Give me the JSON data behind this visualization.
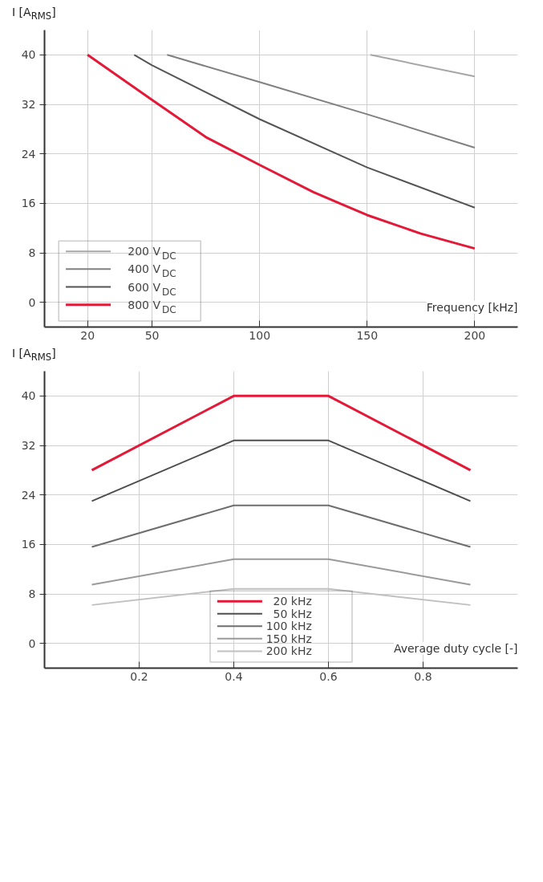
{
  "chart_data": [
    {
      "type": "line",
      "ylabel": "I [A$_{RMS}$]",
      "xlabel": "Frequency [kHz]",
      "xlim": [
        0,
        220
      ],
      "ylim": [
        -4,
        44
      ],
      "xticks": [
        20,
        50,
        100,
        150,
        200
      ],
      "yticks": [
        0,
        8,
        16,
        24,
        32,
        40
      ],
      "grid": true,
      "legend": "bottom left",
      "line_style": "solid",
      "series": [
        {
          "name": "200 V$_{DC}$",
          "color": "#a6a6a6",
          "x": [
            151.5,
            200
          ],
          "values": [
            40,
            36.5
          ]
        },
        {
          "name": "400 V$_{DC}$",
          "color": "#808080",
          "x": [
            57,
            100,
            150,
            200
          ],
          "values": [
            40,
            35.6,
            30.4,
            25
          ]
        },
        {
          "name": "600 V$_{DC}$",
          "color": "#555555",
          "x": [
            41.7,
            50,
            100,
            150,
            200
          ],
          "values": [
            40,
            38.3,
            29.6,
            21.8,
            15.3
          ]
        },
        {
          "name": "800 V$_{DC}$",
          "color": "#e31937",
          "x": [
            20,
            50,
            75,
            100,
            125,
            150,
            175,
            200
          ],
          "values": [
            40,
            32.7,
            26.7,
            22.2,
            17.8,
            14.1,
            11.1,
            8.7
          ]
        }
      ]
    },
    {
      "type": "line",
      "ylabel": "I [A$_{RMS}$]",
      "xlabel": "Average duty cycle [-]",
      "xlim": [
        0,
        1
      ],
      "ylim": [
        -4,
        44
      ],
      "xticks": [
        0.2,
        0.4,
        0.6,
        0.8
      ],
      "yticks": [
        0,
        8,
        16,
        24,
        32,
        40
      ],
      "grid": true,
      "legend": "bottom",
      "line_style": "solid",
      "x": [
        0.1,
        0.4,
        0.6,
        0.9
      ],
      "series": [
        {
          "name": "20 kHz",
          "color": "#e31937",
          "values": [
            28,
            40,
            40,
            28
          ]
        },
        {
          "name": "50 kHz",
          "color": "#4d4d4d",
          "values": [
            23,
            32.8,
            32.8,
            23
          ]
        },
        {
          "name": "100 kHz",
          "color": "#6e6e6e",
          "values": [
            15.6,
            22.3,
            22.3,
            15.6
          ]
        },
        {
          "name": "150 kHz",
          "color": "#9a9a9a",
          "values": [
            9.5,
            13.6,
            13.6,
            9.5
          ]
        },
        {
          "name": "200 kHz",
          "color": "#c0c0c0",
          "values": [
            6.2,
            8.8,
            8.8,
            6.2
          ]
        }
      ]
    }
  ]
}
